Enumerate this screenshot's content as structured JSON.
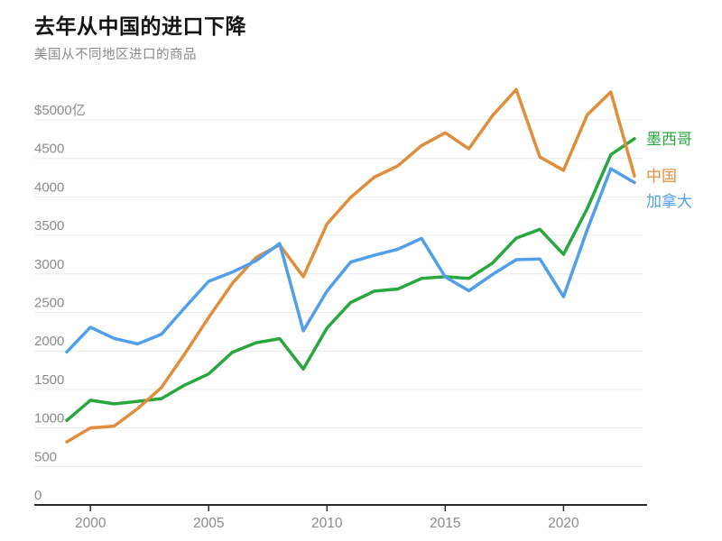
{
  "header": {
    "title": "去年从中国的进口下降",
    "subtitle": "美国从不同地区进口的商品"
  },
  "colors": {
    "background": "#ffffff",
    "title": "#141414",
    "subtitle": "#8a8a8a",
    "axis_text": "#8b8b8b",
    "gridline": "#e9e9e9",
    "axis_line": "#2b2b2b",
    "mexico": "#28a73e",
    "china": "#e08e3c",
    "canada": "#519feb"
  },
  "chart_data": {
    "type": "line",
    "title": "去年从中国的进口下降",
    "subtitle": "美国从不同地区进口的商品",
    "unit": "亿美元",
    "x": [
      1999,
      2000,
      2001,
      2002,
      2003,
      2004,
      2005,
      2006,
      2007,
      2008,
      2009,
      2010,
      2011,
      2012,
      2013,
      2014,
      2015,
      2016,
      2017,
      2018,
      2019,
      2020,
      2021,
      2022,
      2023
    ],
    "series": [
      {
        "key": "mexico",
        "name": "墨西哥",
        "color": "#28a73e",
        "values": [
          1097,
          1359,
          1313,
          1346,
          1381,
          1559,
          1701,
          1983,
          2107,
          2159,
          1765,
          2297,
          2629,
          2776,
          2805,
          2942,
          2964,
          2942,
          3140,
          3465,
          3580,
          3254,
          3847,
          4548,
          4756
        ]
      },
      {
        "key": "china",
        "name": "中国",
        "color": "#e08e3c",
        "values": [
          818,
          1000,
          1023,
          1252,
          1524,
          1967,
          2435,
          2878,
          3214,
          3378,
          2964,
          3649,
          3994,
          4256,
          4404,
          4667,
          4832,
          4625,
          5055,
          5395,
          4517,
          4347,
          5064,
          5363,
          4272
        ]
      },
      {
        "key": "canada",
        "name": "加拿大",
        "color": "#519feb",
        "values": [
          1987,
          2308,
          2163,
          2091,
          2216,
          2564,
          2904,
          3024,
          3171,
          3395,
          2262,
          2776,
          3153,
          3242,
          3321,
          3461,
          2962,
          2781,
          2993,
          3185,
          3194,
          2704,
          3572,
          4366,
          4186
        ]
      }
    ],
    "yticks": [
      0,
      500,
      1000,
      1500,
      2000,
      2500,
      3000,
      3500,
      4000,
      4500,
      5000
    ],
    "ytick_labels": [
      "0",
      "500",
      "1000",
      "1500",
      "2000",
      "2500",
      "3000",
      "3500",
      "4000",
      "4500",
      "$5000亿"
    ],
    "xticks": [
      2000,
      2005,
      2010,
      2015,
      2020
    ],
    "xtick_labels": [
      "2000",
      "2005",
      "2010",
      "2015",
      "2020"
    ],
    "ylim": [
      0,
      5000
    ],
    "xlim": [
      1999,
      2023
    ],
    "grid": true,
    "legend_position": "right-of-line-ends",
    "legend": [
      "墨西哥",
      "中国",
      "加拿大"
    ]
  }
}
